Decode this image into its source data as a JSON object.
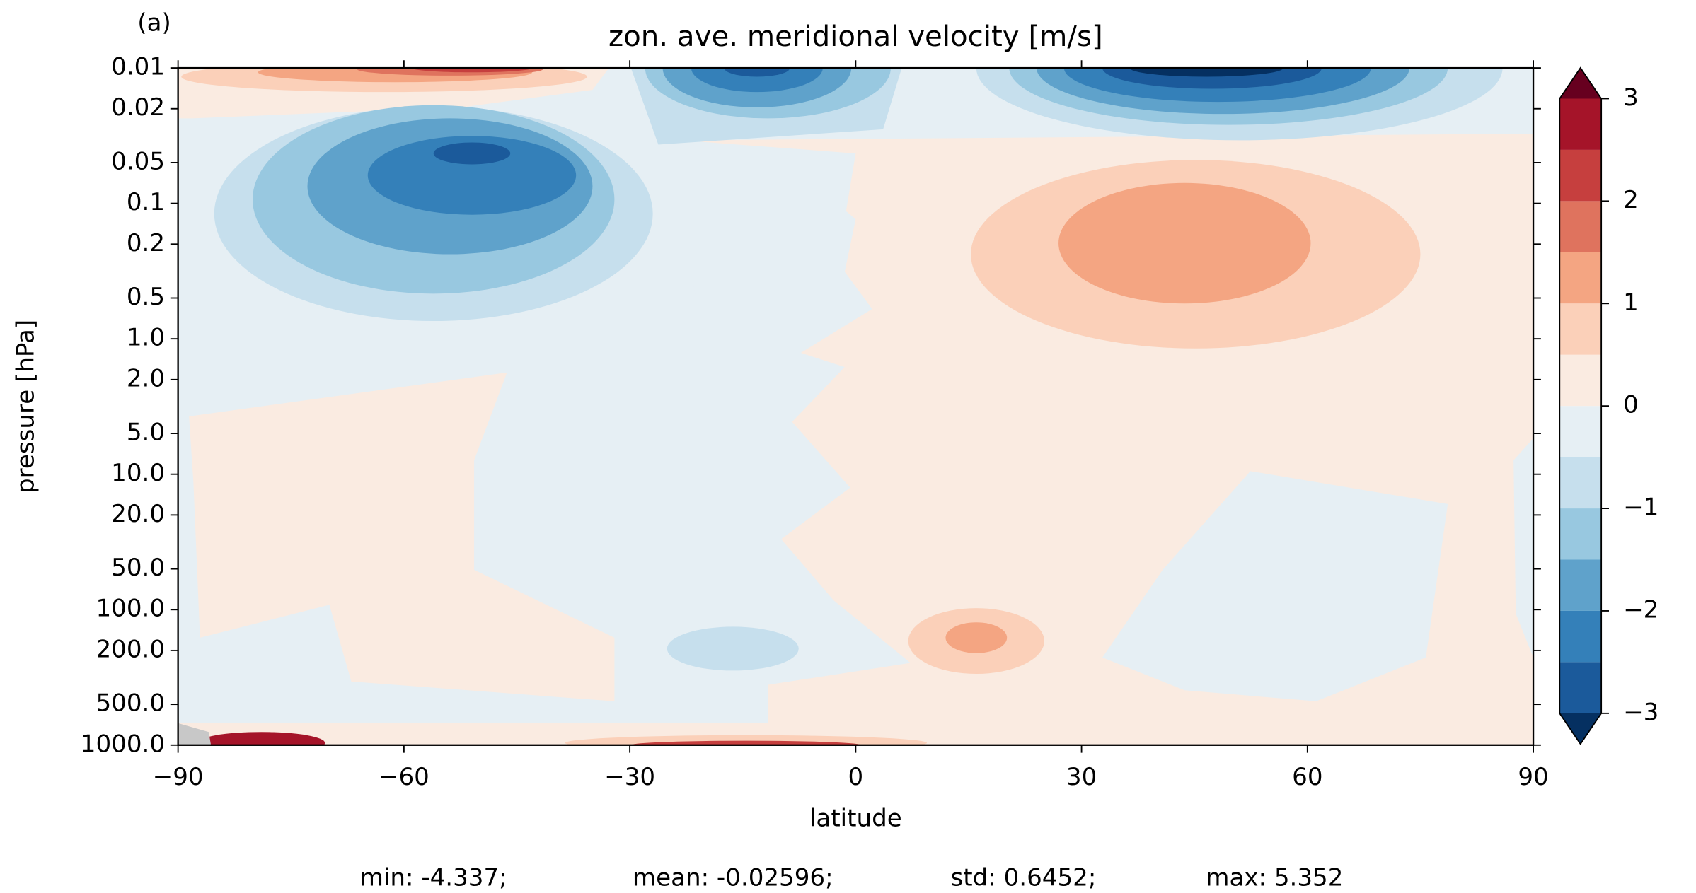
{
  "chart_data": {
    "type": "contour",
    "panel_label": "(a)",
    "title": "zon. ave. meridional velocity [m/s]",
    "xlabel": "latitude",
    "ylabel": "pressure [hPa]",
    "xlim": [
      -90,
      90
    ],
    "xticks": [
      {
        "value": -90,
        "label": "−90"
      },
      {
        "value": -60,
        "label": "−60"
      },
      {
        "value": -30,
        "label": "−30"
      },
      0,
      30,
      60,
      90
    ],
    "ylim": [
      0.01,
      1000
    ],
    "yscale": "log",
    "y_inverted": true,
    "yticks": [
      0.01,
      0.02,
      0.05,
      0.1,
      0.2,
      0.5,
      {
        "value": 1,
        "label": "1.0"
      },
      {
        "value": 2,
        "label": "2.0"
      },
      {
        "value": 5,
        "label": "5.0"
      },
      {
        "value": 10,
        "label": "10.0"
      },
      {
        "value": 20,
        "label": "20.0"
      },
      {
        "value": 50,
        "label": "50.0"
      },
      {
        "value": 100,
        "label": "100.0"
      },
      {
        "value": 200,
        "label": "200.0"
      },
      {
        "value": 500,
        "label": "500.0"
      },
      {
        "value": 1000,
        "label": "1000.0"
      }
    ],
    "colorbar": {
      "levels": [
        -3,
        -2.5,
        -2,
        -1.5,
        -1,
        -0.5,
        0,
        0.5,
        1,
        1.5,
        2,
        2.5,
        3
      ],
      "colors": [
        "#053061",
        "#1b5a9b",
        "#3480b9",
        "#5fa2cb",
        "#98c8e0",
        "#c6dfed",
        "#e6eff4",
        "#faebe1",
        "#fbd0b9",
        "#f4a582",
        "#df735e",
        "#c63f3e",
        "#a51429",
        "#67001f"
      ],
      "ticks": [
        {
          "value": -3,
          "label": "−3"
        },
        {
          "value": -2,
          "label": "−2"
        },
        {
          "value": -1,
          "label": "−1"
        },
        0,
        1,
        2,
        3
      ]
    },
    "stats": [
      "min: -4.337;",
      "mean: -0.02596;",
      "std: 0.6452;",
      "max: 5.352"
    ]
  }
}
